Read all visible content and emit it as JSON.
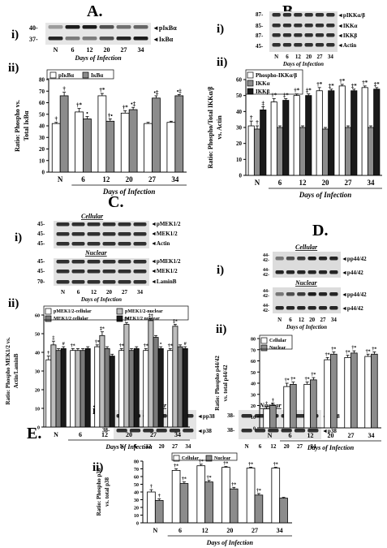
{
  "panels": {
    "A": {
      "letter": "A.",
      "sub_i": "i)",
      "sub_ii": "ii)",
      "blot_labels": [
        "◄pIκBα",
        "◄IκBα"
      ],
      "mw": [
        "40-",
        "37-"
      ],
      "lanes": [
        "N",
        "6",
        "12",
        "20",
        "27",
        "34"
      ]
    },
    "B": {
      "letter": "B.",
      "sub_i": "i)",
      "sub_ii": "ii)",
      "blot_labels": [
        "◄pIKKα/β",
        "◄IKKα",
        "◄IKKβ",
        "◄Actin"
      ],
      "mw": [
        "87-",
        "85-",
        "87-",
        "45-"
      ],
      "lanes": [
        "N",
        "6",
        "12",
        "20",
        "27",
        "34"
      ]
    },
    "C": {
      "letter": "C.",
      "sub_i": "i)",
      "sub_ii": "ii)",
      "cellular_label": "Cellular",
      "nuclear_label": "Nuclear",
      "blot_labels_cellular": [
        "◄pMEK1/2",
        "◄MEK1/2",
        "◄Actin"
      ],
      "blot_labels_nuclear": [
        "◄pMEK1/2",
        "◄MEK1/2",
        "◄LaminB"
      ],
      "mw_cellular": [
        "45-",
        "45-",
        "45-"
      ],
      "mw_nuclear": [
        "45-",
        "45-",
        "70-"
      ],
      "lanes": [
        "N",
        "6",
        "12",
        "20",
        "27",
        "34"
      ]
    },
    "D": {
      "letter": "D.",
      "sub_i": "i)",
      "sub_ii": "ii)",
      "cellular_label": "Cellular",
      "nuclear_label": "Nuclear",
      "blot_labels_cellular": [
        "◄pp44/42",
        "◄p44/42"
      ],
      "blot_labels_nuclear": [
        "◄pp44/42",
        "◄p44/42"
      ],
      "mw": [
        "44-",
        "42-"
      ],
      "lanes": [
        "N",
        "6",
        "12",
        "20",
        "27",
        "34"
      ],
      "days": "Days of Infection"
    },
    "E": {
      "letter": "E.",
      "sub_i": "i)",
      "sub_ii": "ii)",
      "cellular_label": "Cellular",
      "nuclear_label": "Nuclear",
      "blot_labels": [
        "◄pp38",
        "◄p38"
      ],
      "mw": [
        "38-",
        "38-"
      ],
      "lanes": [
        "N",
        "6",
        "12",
        "20",
        "27",
        "34"
      ],
      "days": "Days of Infection"
    }
  },
  "chart_data": [
    {
      "id": "A",
      "type": "bar",
      "categories": [
        "N",
        "6",
        "12",
        "20",
        "27",
        "34"
      ],
      "ylabel": "Ratio: Phospho vs. Total IκBα",
      "xlabel": "Days of Infection",
      "ylim": [
        0,
        80
      ],
      "yticks": [
        0,
        10,
        20,
        30,
        40,
        50,
        60,
        70,
        80
      ],
      "legend_position": "top-left",
      "series": [
        {
          "name": "pIκBα",
          "color": "#ffffff",
          "values": [
            42,
            52,
            66,
            51,
            42,
            43
          ],
          "errors": [
            1,
            3,
            2,
            2,
            1,
            1
          ],
          "marks": [
            "†",
            "†*",
            "†*",
            "†*",
            "",
            ""
          ]
        },
        {
          "name": "IκBα",
          "color": "#8c8c8c",
          "values": [
            66,
            46,
            44,
            54,
            64,
            66
          ],
          "errors": [
            3,
            2,
            2,
            2,
            2,
            1
          ],
          "marks": [
            "†",
            "•",
            "†•",
            "•‡",
            "•‡",
            "•‡"
          ]
        }
      ]
    },
    {
      "id": "B",
      "type": "bar",
      "categories": [
        "N",
        "6",
        "12",
        "20",
        "27",
        "34"
      ],
      "ylabel": "Ratio: Phospho/Total IKKα/β vs. Actin",
      "xlabel": "Days of Infection",
      "ylim": [
        0,
        60
      ],
      "yticks": [
        0,
        10,
        20,
        30,
        40,
        50,
        60
      ],
      "legend_position": "top-left",
      "series": [
        {
          "name": "Phospho-IKKα/β",
          "color": "#ffffff",
          "values": [
            31,
            46,
            50,
            53,
            56,
            55
          ],
          "errors": [
            3,
            2,
            1,
            2,
            1,
            1
          ],
          "marks": [
            "†",
            "†*",
            "†*",
            "†*",
            "†*",
            "†*"
          ]
        },
        {
          "name": "IKKα",
          "color": "#8c8c8c",
          "values": [
            29,
            30,
            30,
            29,
            30,
            30
          ],
          "errors": [
            2,
            1,
            1,
            1,
            1,
            1
          ],
          "marks": [
            "†",
            "",
            "",
            "",
            "",
            ""
          ]
        },
        {
          "name": "IKKβ",
          "color": "#1a1a1a",
          "values": [
            41,
            47,
            50,
            53,
            53,
            54
          ],
          "errors": [
            2,
            1,
            1,
            1,
            1,
            1
          ],
          "marks": [
            "‡",
            "‡*",
            "‡*",
            "‡*",
            "‡*",
            "‡*"
          ]
        }
      ]
    },
    {
      "id": "C",
      "type": "bar",
      "categories": [
        "N",
        "6",
        "12",
        "20",
        "27",
        "34"
      ],
      "ylabel": "Ratio: Phospho MEK1/2 vs. Actin/LaminB",
      "xlabel": "Days of Infection",
      "ylim": [
        0,
        60
      ],
      "yticks": [
        0,
        10,
        20,
        30,
        40,
        50,
        60
      ],
      "legend_position": "top",
      "series": [
        {
          "name": "pMEK1/2-cellular",
          "color": "#ffffff",
          "values": [
            36,
            41,
            43,
            41,
            41,
            41
          ],
          "errors": [
            2,
            1,
            1,
            1,
            1,
            1
          ],
          "marks": [
            "†",
            "†*",
            "†*",
            "†*",
            "†*",
            "†*"
          ]
        },
        {
          "name": "pMEK1/2-nuclear",
          "color": "#bdbdbd",
          "values": [
            44,
            41,
            49,
            55,
            57,
            54
          ],
          "errors": [
            2,
            1,
            2,
            1,
            1,
            1
          ],
          "marks": [
            "‡",
            "",
            "‡*",
            "‡*",
            "‡*",
            "‡*"
          ]
        },
        {
          "name": "MEK1/2 cellular",
          "color": "#7a7a7a",
          "values": [
            41,
            41,
            42,
            41,
            48,
            43
          ],
          "errors": [
            1,
            1,
            1,
            1,
            1,
            1
          ],
          "marks": [
            "",
            "",
            "",
            "",
            "",
            ""
          ]
        },
        {
          "name": "MEK1/2 nuclear",
          "color": "#1a1a1a",
          "values": [
            42,
            42,
            38,
            42,
            42,
            42
          ],
          "errors": [
            1,
            1,
            1,
            1,
            1,
            1
          ],
          "marks": [
            "#",
            "",
            "",
            "",
            "•",
            "#"
          ]
        }
      ]
    },
    {
      "id": "D",
      "type": "bar",
      "categories": [
        "N",
        "6",
        "12",
        "20",
        "27",
        "34"
      ],
      "ylabel": "Ratio: Phospho p44/42 vs. total p44/42",
      "xlabel": "Days of Infection",
      "ylim": [
        0,
        80
      ],
      "yticks": [
        0,
        10,
        20,
        30,
        40,
        50,
        60,
        70,
        80
      ],
      "legend_position": "top-left",
      "series": [
        {
          "name": "Cellular",
          "color": "#ffffff",
          "values": [
            17,
            37,
            39,
            61,
            63,
            64
          ],
          "errors": [
            2,
            3,
            2,
            2,
            2,
            2
          ],
          "marks": [
            "†",
            "†*",
            "†*",
            "†*",
            "†*",
            "†*"
          ]
        },
        {
          "name": "Nuclear",
          "color": "#8c8c8c",
          "values": [
            20,
            39,
            43,
            66,
            67,
            66
          ],
          "errors": [
            2,
            2,
            2,
            2,
            2,
            2
          ],
          "marks": [
            "†",
            "†*",
            "†*",
            "†*",
            "†*",
            "†*"
          ]
        }
      ]
    },
    {
      "id": "E",
      "type": "bar",
      "categories": [
        "N",
        "6",
        "12",
        "20",
        "27",
        "34"
      ],
      "ylabel": "Ratio: Phospho p38 vs. total p38",
      "xlabel": "Days of Infection",
      "ylim": [
        0,
        80
      ],
      "yticks": [
        0,
        10,
        20,
        30,
        40,
        50,
        60,
        70,
        80
      ],
      "legend_position": "top",
      "series": [
        {
          "name": "Cellular",
          "color": "#ffffff",
          "values": [
            40,
            68,
            74,
            72,
            71,
            71
          ],
          "errors": [
            3,
            2,
            2,
            1,
            1,
            1
          ],
          "marks": [
            "†",
            "†*",
            "†*",
            "†*",
            "†*",
            "†*"
          ]
        },
        {
          "name": "Nuclear",
          "color": "#8c8c8c",
          "values": [
            29,
            51,
            53,
            44,
            36,
            32
          ],
          "errors": [
            2,
            2,
            2,
            2,
            2,
            1
          ],
          "marks": [
            "†",
            "†*",
            "†*",
            "†*",
            "†*",
            ""
          ]
        }
      ]
    }
  ]
}
